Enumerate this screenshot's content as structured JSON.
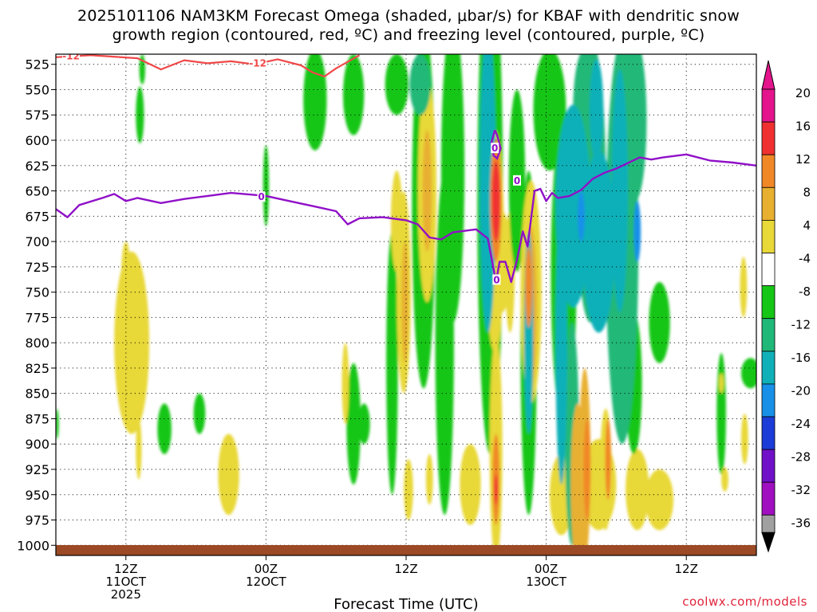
{
  "chart_data": {
    "type": "heatmap",
    "title_line1": "2025101106 NAM3KM Forecast Omega (shaded, μbar/s) for KBAF with dendritic snow",
    "title_line2": "growth region (contoured, red, ºC) and freezing level (contoured, purple, ºC)",
    "xlabel": "Forecast Time (UTC)",
    "credit": "coolwx.com/models",
    "xlim": [
      0,
      60
    ],
    "ylim": [
      1010,
      515
    ],
    "pressure_levels": [
      525,
      550,
      575,
      600,
      625,
      650,
      675,
      700,
      725,
      750,
      775,
      800,
      825,
      850,
      875,
      900,
      925,
      950,
      975,
      1000
    ],
    "x_ticks": [
      {
        "x": 6,
        "line1": "12Z",
        "line2": "11OCT",
        "line3": "2025"
      },
      {
        "x": 18,
        "line1": "00Z",
        "line2": "12OCT",
        "line3": ""
      },
      {
        "x": 30,
        "line1": "12Z",
        "line2": "",
        "line3": ""
      },
      {
        "x": 42,
        "line1": "00Z",
        "line2": "13OCT",
        "line3": ""
      },
      {
        "x": 54,
        "line1": "12Z",
        "line2": "",
        "line3": ""
      }
    ],
    "colorbar": {
      "labels": [
        "20",
        "16",
        "12",
        "8",
        "4",
        "-4",
        "-8",
        "-12",
        "-16",
        "-20",
        "-24",
        "-28",
        "-32",
        "-36"
      ],
      "colors": [
        "#e4148c",
        "#f03030",
        "#f08828",
        "#e8b030",
        "#e8d838",
        "#ffffff",
        "#16c616",
        "#20b878",
        "#10b0b8",
        "#1890e8",
        "#1c3cd8",
        "#7010c8",
        "#a010c0",
        "#a0a0a0"
      ]
    },
    "omega_blobs": [
      {
        "x": 7.2,
        "p": 575,
        "rx": 0.35,
        "ry": 28,
        "v": -5
      },
      {
        "x": 7.4,
        "p": 530,
        "rx": 0.25,
        "ry": 15,
        "v": -5
      },
      {
        "x": 18.0,
        "p": 645,
        "rx": 0.25,
        "ry": 40,
        "v": -5
      },
      {
        "x": 22.2,
        "p": 560,
        "rx": 1.0,
        "ry": 50,
        "v": -5
      },
      {
        "x": 25.5,
        "p": 555,
        "rx": 0.9,
        "ry": 40,
        "v": -5
      },
      {
        "x": 29.2,
        "p": 545,
        "rx": 1.0,
        "ry": 30,
        "v": -6
      },
      {
        "x": 31.5,
        "p": 665,
        "rx": 1.0,
        "ry": 180,
        "v": -6
      },
      {
        "x": 34.0,
        "p": 630,
        "rx": 1.0,
        "ry": 150,
        "v": -6
      },
      {
        "x": 31.2,
        "p": 545,
        "rx": 0.9,
        "ry": 30,
        "v": -10
      },
      {
        "x": 37.2,
        "p": 660,
        "rx": 1.1,
        "ry": 250,
        "v": -7
      },
      {
        "x": 37.0,
        "p": 640,
        "rx": 0.7,
        "ry": 150,
        "v": -12
      },
      {
        "x": 39.5,
        "p": 640,
        "rx": 0.7,
        "ry": 90,
        "v": -6
      },
      {
        "x": 40.5,
        "p": 800,
        "rx": 0.7,
        "ry": 170,
        "v": -7
      },
      {
        "x": 40.5,
        "p": 790,
        "rx": 0.4,
        "ry": 100,
        "v": -12
      },
      {
        "x": 42.3,
        "p": 570,
        "rx": 1.4,
        "ry": 60,
        "v": -7
      },
      {
        "x": 43.5,
        "p": 730,
        "rx": 1.1,
        "ry": 150,
        "v": -7
      },
      {
        "x": 44.2,
        "p": 890,
        "rx": 0.6,
        "ry": 110,
        "v": -8
      },
      {
        "x": 43.3,
        "p": 800,
        "rx": 0.5,
        "ry": 140,
        "v": -12
      },
      {
        "x": 44.3,
        "p": 665,
        "rx": 1.5,
        "ry": 100,
        "v": -12
      },
      {
        "x": 45.8,
        "p": 640,
        "rx": 1.3,
        "ry": 140,
        "v": -9
      },
      {
        "x": 46.5,
        "p": 700,
        "rx": 1.4,
        "ry": 90,
        "v": -12
      },
      {
        "x": 48.5,
        "p": 700,
        "rx": 1.4,
        "ry": 200,
        "v": -9
      },
      {
        "x": 48.3,
        "p": 650,
        "rx": 0.7,
        "ry": 120,
        "v": -14
      },
      {
        "x": 45.3,
        "p": 570,
        "rx": 1.0,
        "ry": 60,
        "v": -9
      },
      {
        "x": 46.3,
        "p": 570,
        "rx": 0.6,
        "ry": 50,
        "v": -15
      },
      {
        "x": 49.6,
        "p": 580,
        "rx": 1.0,
        "ry": 80,
        "v": -8
      },
      {
        "x": 45.0,
        "p": 675,
        "rx": 0.3,
        "ry": 25,
        "v": -17
      },
      {
        "x": 49.8,
        "p": 690,
        "rx": 0.3,
        "ry": 30,
        "v": -17
      },
      {
        "x": 51.7,
        "p": 780,
        "rx": 0.9,
        "ry": 40,
        "v": -7
      },
      {
        "x": 49.5,
        "p": 840,
        "rx": 0.7,
        "ry": 70,
        "v": -6
      },
      {
        "x": 25.5,
        "p": 880,
        "rx": 0.6,
        "ry": 60,
        "v": -5
      },
      {
        "x": 26.4,
        "p": 880,
        "rx": 0.5,
        "ry": 20,
        "v": -5
      },
      {
        "x": 28.8,
        "p": 820,
        "rx": 0.5,
        "ry": 130,
        "v": -5
      },
      {
        "x": 33.3,
        "p": 800,
        "rx": 0.8,
        "ry": 170,
        "v": -6
      },
      {
        "x": 12.3,
        "p": 870,
        "rx": 0.5,
        "ry": 20,
        "v": -5
      },
      {
        "x": 9.3,
        "p": 885,
        "rx": 0.6,
        "ry": 25,
        "v": -5
      },
      {
        "x": 0.1,
        "p": 880,
        "rx": 0.15,
        "ry": 15,
        "v": -5
      },
      {
        "x": 59.5,
        "p": 830,
        "rx": 0.8,
        "ry": 15,
        "v": -5
      },
      {
        "x": 57.0,
        "p": 870,
        "rx": 0.4,
        "ry": 60,
        "v": -5
      },
      {
        "x": 6.5,
        "p": 800,
        "rx": 1.5,
        "ry": 90,
        "v": 5
      },
      {
        "x": 6.0,
        "p": 735,
        "rx": 0.4,
        "ry": 35,
        "v": 5
      },
      {
        "x": 7.1,
        "p": 905,
        "rx": 0.25,
        "ry": 30,
        "v": 5
      },
      {
        "x": 14.8,
        "p": 930,
        "rx": 0.9,
        "ry": 40,
        "v": 5
      },
      {
        "x": 24.8,
        "p": 840,
        "rx": 0.3,
        "ry": 40,
        "v": 5
      },
      {
        "x": 29.2,
        "p": 680,
        "rx": 0.5,
        "ry": 50,
        "v": 5
      },
      {
        "x": 29.8,
        "p": 750,
        "rx": 0.6,
        "ry": 100,
        "v": 6
      },
      {
        "x": 29.9,
        "p": 760,
        "rx": 0.3,
        "ry": 60,
        "v": 10
      },
      {
        "x": 31.8,
        "p": 650,
        "rx": 0.8,
        "ry": 110,
        "v": 7
      },
      {
        "x": 31.8,
        "p": 650,
        "rx": 0.4,
        "ry": 60,
        "v": 10
      },
      {
        "x": 30.2,
        "p": 945,
        "rx": 0.4,
        "ry": 30,
        "v": 5
      },
      {
        "x": 32.0,
        "p": 935,
        "rx": 0.3,
        "ry": 25,
        "v": 5
      },
      {
        "x": 34.4,
        "p": 575,
        "rx": 0.3,
        "ry": 40,
        "v": 5
      },
      {
        "x": 35.5,
        "p": 940,
        "rx": 0.9,
        "ry": 40,
        "v": 6
      },
      {
        "x": 36.9,
        "p": 610,
        "rx": 0.45,
        "ry": 40,
        "v": 6
      },
      {
        "x": 37.6,
        "p": 700,
        "rx": 0.8,
        "ry": 110,
        "v": 7
      },
      {
        "x": 37.7,
        "p": 660,
        "rx": 0.5,
        "ry": 60,
        "v": 12
      },
      {
        "x": 37.7,
        "p": 660,
        "rx": 0.35,
        "ry": 40,
        "v": 18
      },
      {
        "x": 37.7,
        "p": 905,
        "rx": 0.55,
        "ry": 110,
        "v": 7
      },
      {
        "x": 37.7,
        "p": 935,
        "rx": 0.3,
        "ry": 45,
        "v": 13
      },
      {
        "x": 37.7,
        "p": 945,
        "rx": 0.15,
        "ry": 15,
        "v": 17
      },
      {
        "x": 38.9,
        "p": 730,
        "rx": 0.4,
        "ry": 60,
        "v": 5
      },
      {
        "x": 40.7,
        "p": 750,
        "rx": 0.9,
        "ry": 110,
        "v": 7
      },
      {
        "x": 40.7,
        "p": 765,
        "rx": 0.5,
        "ry": 80,
        "v": 11
      },
      {
        "x": 40.5,
        "p": 745,
        "rx": 0.3,
        "ry": 40,
        "v": 15
      },
      {
        "x": 38.2,
        "p": 720,
        "rx": 0.8,
        "ry": 50,
        "v": 5
      },
      {
        "x": 43.3,
        "p": 950,
        "rx": 1.0,
        "ry": 40,
        "v": 5
      },
      {
        "x": 44.7,
        "p": 940,
        "rx": 0.6,
        "ry": 80,
        "v": 8
      },
      {
        "x": 45.3,
        "p": 920,
        "rx": 0.5,
        "ry": 95,
        "v": 10
      },
      {
        "x": 45.5,
        "p": 925,
        "rx": 0.3,
        "ry": 50,
        "v": 15
      },
      {
        "x": 47.1,
        "p": 925,
        "rx": 0.5,
        "ry": 60,
        "v": 7
      },
      {
        "x": 47.3,
        "p": 915,
        "rx": 0.25,
        "ry": 40,
        "v": 12
      },
      {
        "x": 46.5,
        "p": 940,
        "rx": 1.5,
        "ry": 45,
        "v": 5
      },
      {
        "x": 49.8,
        "p": 945,
        "rx": 1.0,
        "ry": 40,
        "v": 5
      },
      {
        "x": 51.7,
        "p": 955,
        "rx": 1.2,
        "ry": 30,
        "v": 5
      },
      {
        "x": 57.0,
        "p": 840,
        "rx": 0.2,
        "ry": 10,
        "v": 5
      },
      {
        "x": 57.3,
        "p": 935,
        "rx": 0.3,
        "ry": 12,
        "v": 5
      },
      {
        "x": 59.0,
        "p": 895,
        "rx": 0.3,
        "ry": 25,
        "v": 5
      },
      {
        "x": 58.9,
        "p": 745,
        "rx": 0.3,
        "ry": 30,
        "v": 5
      }
    ],
    "freezing_level": {
      "label": "0",
      "points": [
        [
          0,
          668
        ],
        [
          1,
          676
        ],
        [
          2,
          664
        ],
        [
          4,
          657
        ],
        [
          5,
          653
        ],
        [
          6,
          660
        ],
        [
          7,
          657
        ],
        [
          9,
          662
        ],
        [
          11,
          658
        ],
        [
          13,
          655
        ],
        [
          15,
          652
        ],
        [
          17,
          654
        ],
        [
          18,
          655
        ],
        [
          20,
          660
        ],
        [
          22,
          665
        ],
        [
          24,
          670
        ],
        [
          25,
          683
        ],
        [
          26,
          677
        ],
        [
          28,
          676
        ],
        [
          30,
          679
        ],
        [
          31,
          683
        ],
        [
          32,
          696
        ],
        [
          33,
          698
        ],
        [
          34,
          691
        ],
        [
          36,
          688
        ],
        [
          37,
          697
        ],
        [
          37.7,
          740
        ],
        [
          38,
          720
        ],
        [
          38.5,
          720
        ],
        [
          39,
          740
        ],
        [
          39.5,
          718
        ],
        [
          40,
          690
        ],
        [
          40.4,
          705
        ],
        [
          41,
          650
        ],
        [
          41.5,
          648
        ],
        [
          42,
          660
        ],
        [
          42.5,
          652
        ],
        [
          43,
          657
        ],
        [
          44,
          655
        ],
        [
          45,
          649
        ],
        [
          46,
          638
        ],
        [
          47,
          632
        ],
        [
          48,
          628
        ],
        [
          50,
          617
        ],
        [
          51,
          619
        ],
        [
          52,
          617
        ],
        [
          54,
          614
        ],
        [
          56,
          620
        ],
        [
          58,
          622
        ],
        [
          60,
          625
        ]
      ],
      "loop": [
        [
          37.6,
          590
        ],
        [
          37.3,
          603
        ],
        [
          37.5,
          615
        ],
        [
          37.8,
          618
        ],
        [
          38.1,
          608
        ],
        [
          37.8,
          595
        ],
        [
          37.6,
          590
        ]
      ]
    },
    "dendritic_minus12": {
      "label": "-12",
      "points": [
        [
          0,
          518
        ],
        [
          3,
          516
        ],
        [
          7,
          519
        ],
        [
          9,
          530
        ],
        [
          11,
          521
        ],
        [
          13,
          524
        ],
        [
          15,
          522
        ],
        [
          17,
          525
        ],
        [
          19,
          520
        ],
        [
          21,
          526
        ],
        [
          22,
          533
        ],
        [
          23,
          537
        ],
        [
          24,
          529
        ],
        [
          26,
          516
        ]
      ]
    }
  }
}
